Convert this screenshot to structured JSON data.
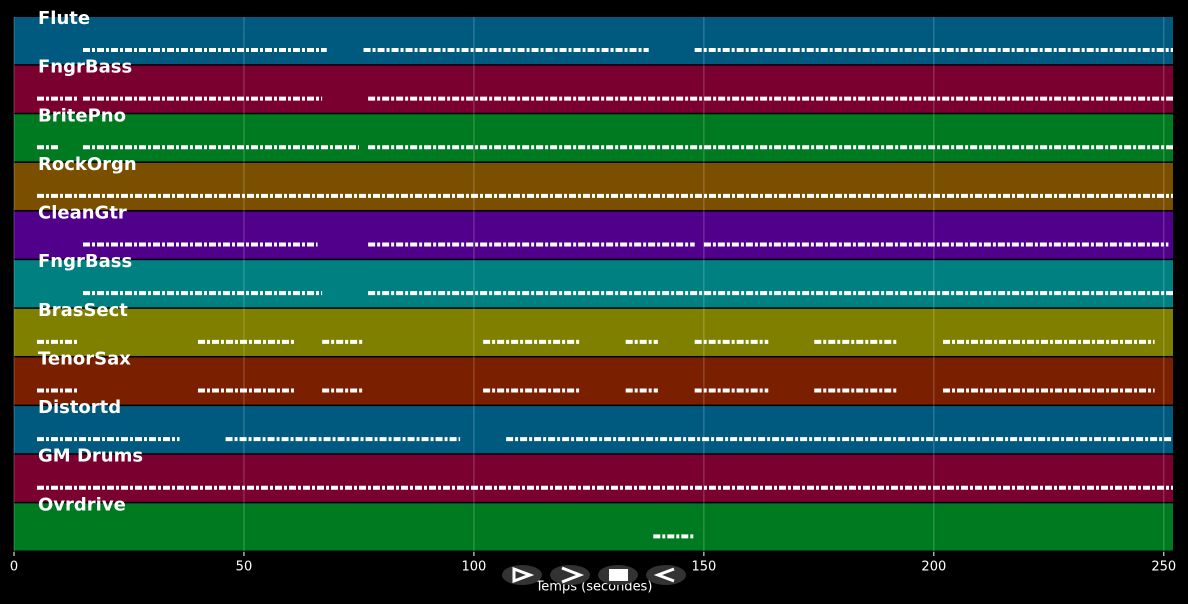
{
  "chart_data": {
    "type": "timeline",
    "xlabel": "Temps (secondes)",
    "xlim": [
      0,
      252
    ],
    "xticks": [
      0,
      50,
      100,
      150,
      200,
      250
    ],
    "grid": true,
    "series": [
      {
        "name": "Flute",
        "color": "#005a80",
        "segments": [
          [
            15,
            68
          ],
          [
            76,
            138
          ],
          [
            148,
            252
          ]
        ]
      },
      {
        "name": "FngrBass",
        "color": "#7a0030",
        "segments": [
          [
            5,
            14
          ],
          [
            15,
            67
          ],
          [
            77,
            252
          ]
        ]
      },
      {
        "name": "BritePno",
        "color": "#007a20",
        "segments": [
          [
            5,
            10
          ],
          [
            15,
            75
          ],
          [
            77,
            252
          ]
        ]
      },
      {
        "name": "RockOrgn",
        "color": "#7a5000",
        "segments": [
          [
            5,
            252
          ]
        ]
      },
      {
        "name": "CleanGtr",
        "color": "#50008a",
        "segments": [
          [
            15,
            66
          ],
          [
            77,
            148
          ],
          [
            150,
            251
          ]
        ]
      },
      {
        "name": "FngrBass",
        "color": "#008080",
        "segments": [
          [
            15,
            67
          ],
          [
            77,
            252
          ]
        ]
      },
      {
        "name": "BrasSect",
        "color": "#808000",
        "segments": [
          [
            5,
            14
          ],
          [
            40,
            61
          ],
          [
            67,
            76
          ],
          [
            102,
            123
          ],
          [
            133,
            140
          ],
          [
            148,
            164
          ],
          [
            174,
            192
          ],
          [
            202,
            248
          ]
        ]
      },
      {
        "name": "TenorSax",
        "color": "#7a2000",
        "segments": [
          [
            5,
            14
          ],
          [
            40,
            61
          ],
          [
            67,
            76
          ],
          [
            102,
            123
          ],
          [
            133,
            140
          ],
          [
            148,
            164
          ],
          [
            174,
            192
          ],
          [
            202,
            248
          ]
        ]
      },
      {
        "name": "Distortd",
        "color": "#005a80",
        "segments": [
          [
            5,
            36
          ],
          [
            46,
            97
          ],
          [
            107,
            252
          ]
        ]
      },
      {
        "name": "GM Drums",
        "color": "#7a0030",
        "segments": [
          [
            5,
            252
          ]
        ]
      },
      {
        "name": "Ovrdrive",
        "color": "#007a20",
        "segments": [
          [
            139,
            148
          ]
        ]
      }
    ]
  }
}
